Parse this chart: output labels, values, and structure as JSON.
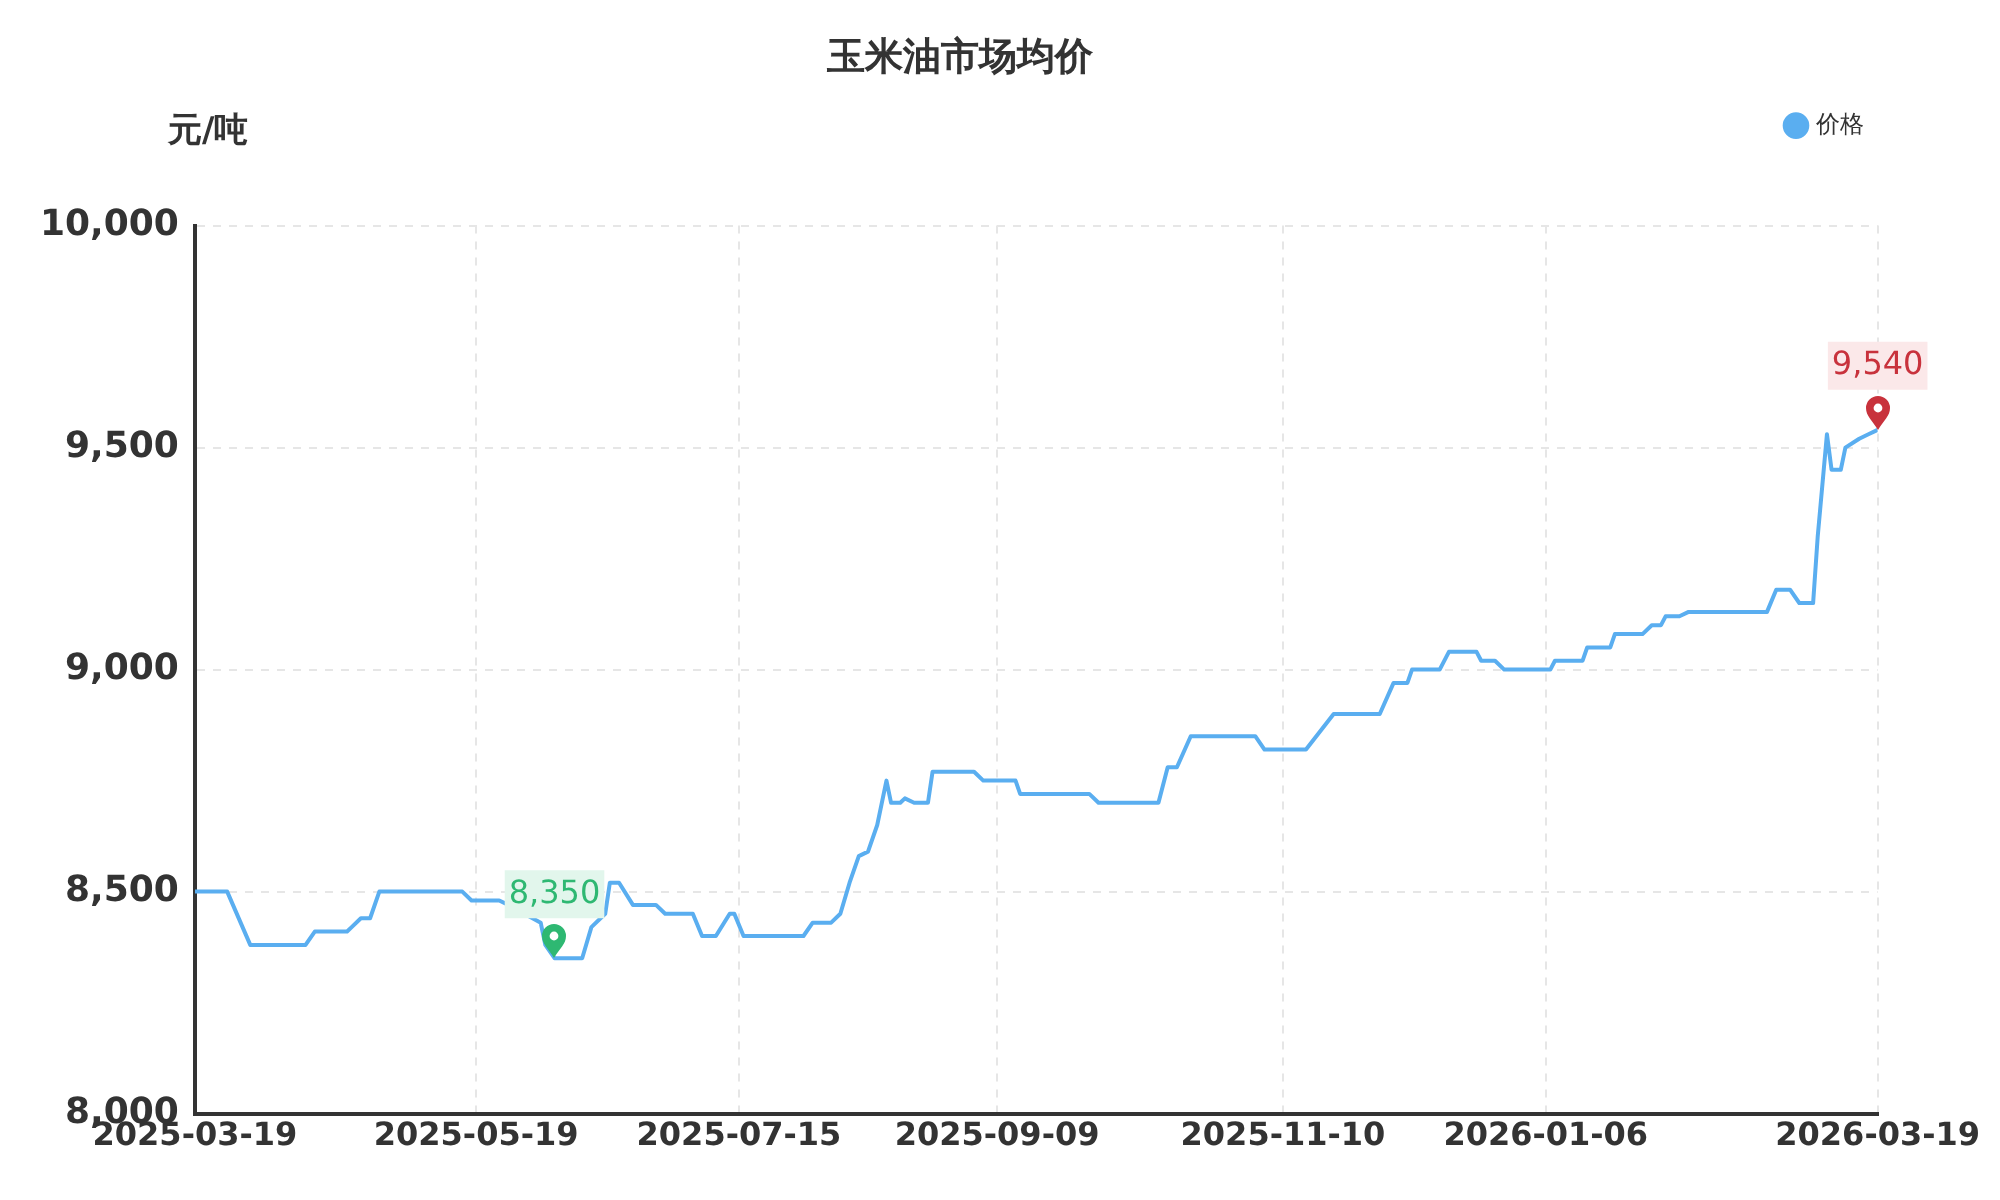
{
  "chart_data": {
    "type": "line",
    "title": "玉米油市场均价",
    "ylabel": "元/吨",
    "legend": "top right",
    "grid": true,
    "marker": "none",
    "line_style": "solid",
    "xlim": [
      "2025-03-19",
      "2026-03-19"
    ],
    "xticks": [
      "2025-03-19",
      "2025-05-19",
      "2025-07-15",
      "2025-09-09",
      "2025-11-10",
      "2026-01-06",
      "2026-03-19"
    ],
    "ylim": [
      8000,
      10000
    ],
    "yticks": [
      {
        "value": 8000,
        "label": "8,000"
      },
      {
        "value": 8500,
        "label": "8,500"
      },
      {
        "value": 9000,
        "label": "9,000"
      },
      {
        "value": 9500,
        "label": "9,500"
      },
      {
        "value": 10000,
        "label": "10,000"
      }
    ],
    "annotations": [
      {
        "text": "8,350",
        "x": "2025-06-05",
        "y": 8350
      },
      {
        "text": "9,540",
        "x": "2026-03-19",
        "y": 9540
      }
    ],
    "series": [
      {
        "name": "价格",
        "color": "#5aaef0",
        "x": [
          "2025-03-19",
          "2025-03-26",
          "2025-03-31",
          "2025-04-12",
          "2025-04-14",
          "2025-04-21",
          "2025-04-22",
          "2025-04-24",
          "2025-04-26",
          "2025-04-28",
          "2025-05-16",
          "2025-05-18",
          "2025-05-24",
          "2025-05-26",
          "2025-06-02",
          "2025-06-03",
          "2025-06-05",
          "2025-06-11",
          "2025-06-13",
          "2025-06-16",
          "2025-06-17",
          "2025-06-19",
          "2025-06-22",
          "2025-06-27",
          "2025-06-29",
          "2025-07-05",
          "2025-07-07",
          "2025-07-10",
          "2025-07-13",
          "2025-07-14",
          "2025-07-16",
          "2025-07-29",
          "2025-07-31",
          "2025-08-04",
          "2025-08-06",
          "2025-08-08",
          "2025-08-10",
          "2025-08-12",
          "2025-08-14",
          "2025-08-16",
          "2025-08-17",
          "2025-08-19",
          "2025-08-20",
          "2025-08-22",
          "2025-08-25",
          "2025-08-26",
          "2025-09-04",
          "2025-09-06",
          "2025-09-13",
          "2025-09-14",
          "2025-09-29",
          "2025-10-01",
          "2025-10-14",
          "2025-10-16",
          "2025-10-18",
          "2025-10-21",
          "2025-11-04",
          "2025-11-06",
          "2025-11-15",
          "2025-11-18",
          "2025-11-21",
          "2025-12-01",
          "2025-12-04",
          "2025-12-07",
          "2025-12-08",
          "2025-12-14",
          "2025-12-16",
          "2025-12-22",
          "2025-12-23",
          "2025-12-26",
          "2025-12-28",
          "2026-01-07",
          "2026-01-08",
          "2026-01-14",
          "2026-01-15",
          "2026-01-20",
          "2026-01-21",
          "2026-01-27",
          "2026-01-29",
          "2026-01-31",
          "2026-02-01",
          "2026-02-04",
          "2026-02-06",
          "2026-02-23",
          "2026-02-25",
          "2026-02-28",
          "2026-03-02",
          "2026-03-05",
          "2026-03-06",
          "2026-03-08",
          "2026-03-09",
          "2026-03-11",
          "2026-03-12",
          "2026-03-15",
          "2026-03-17",
          "2026-03-19"
        ],
        "values": [
          8500,
          8500,
          8380,
          8380,
          8410,
          8410,
          8420,
          8440,
          8440,
          8500,
          8500,
          8480,
          8480,
          8470,
          8430,
          8380,
          8350,
          8350,
          8420,
          8450,
          8520,
          8520,
          8470,
          8470,
          8450,
          8450,
          8400,
          8400,
          8450,
          8450,
          8400,
          8400,
          8430,
          8430,
          8450,
          8520,
          8580,
          8590,
          8650,
          8750,
          8700,
          8700,
          8710,
          8700,
          8700,
          8770,
          8770,
          8750,
          8750,
          8720,
          8720,
          8700,
          8700,
          8780,
          8780,
          8850,
          8850,
          8820,
          8820,
          8860,
          8900,
          8900,
          8970,
          8970,
          9000,
          9000,
          9040,
          9040,
          9020,
          9020,
          9000,
          9000,
          9020,
          9020,
          9050,
          9050,
          9080,
          9080,
          9100,
          9100,
          9120,
          9120,
          9130,
          9130,
          9180,
          9180,
          9150,
          9150,
          9300,
          9530,
          9450,
          9450,
          9500,
          9520,
          9530,
          9540
        ]
      }
    ]
  }
}
